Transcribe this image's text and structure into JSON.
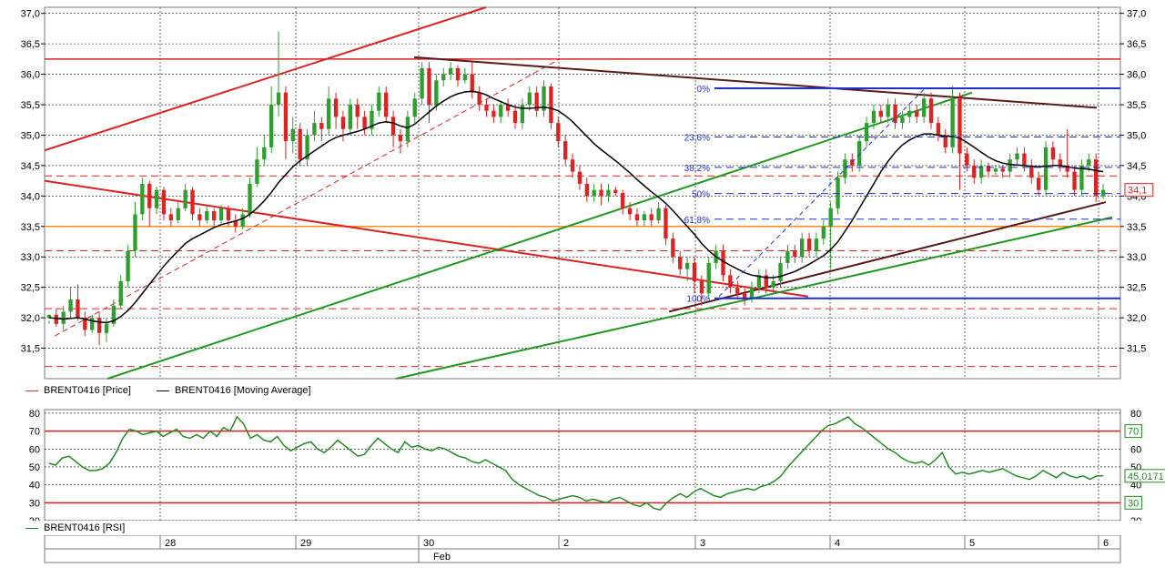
{
  "chart_data": [
    {
      "type": "candlestick",
      "name": "price-panel",
      "ylim": [
        31.0,
        37.1
      ],
      "yticks": [
        "31,5",
        "32,0",
        "32,5",
        "33,0",
        "33,5",
        "34,0",
        "34,5",
        "35,0",
        "35,5",
        "36,0",
        "36,5",
        "37,0"
      ],
      "ytick_values": [
        31.5,
        32.0,
        32.5,
        33.0,
        33.5,
        34.0,
        34.5,
        35.0,
        35.5,
        36.0,
        36.5,
        37.0
      ],
      "series": [
        {
          "name": "BRENT0416 [Price]",
          "color": "#e03030"
        },
        {
          "name": "BRENT0416 [Moving Average]",
          "color": "#000000"
        }
      ],
      "candles": [
        [
          32.0,
          32.05,
          31.95,
          31.9
        ],
        [
          32.05,
          31.9,
          32.15,
          31.85
        ],
        [
          31.9,
          32.1,
          32.2,
          31.8
        ],
        [
          32.1,
          32.3,
          32.5,
          32.0
        ],
        [
          32.3,
          32.0,
          32.55,
          31.95
        ],
        [
          32.0,
          31.8,
          32.1,
          31.7
        ],
        [
          31.8,
          32.0,
          32.05,
          31.75
        ],
        [
          32.0,
          31.75,
          32.1,
          31.55
        ],
        [
          31.75,
          31.9,
          32.0,
          31.6
        ],
        [
          31.9,
          32.2,
          32.3,
          31.85
        ],
        [
          32.2,
          32.6,
          32.7,
          32.15
        ],
        [
          32.6,
          33.1,
          33.2,
          32.5
        ],
        [
          33.1,
          33.7,
          33.9,
          33.0
        ],
        [
          33.7,
          34.2,
          34.3,
          33.6
        ],
        [
          34.2,
          33.8,
          34.25,
          33.5
        ],
        [
          33.8,
          34.1,
          34.15,
          33.7
        ],
        [
          34.1,
          33.7,
          34.15,
          33.6
        ],
        [
          33.7,
          33.6,
          33.8,
          33.5
        ],
        [
          33.6,
          33.8,
          33.9,
          33.55
        ],
        [
          33.8,
          34.1,
          34.2,
          33.75
        ],
        [
          34.1,
          33.7,
          34.15,
          33.6
        ],
        [
          33.7,
          33.6,
          33.8,
          33.5
        ],
        [
          33.6,
          33.75,
          33.85,
          33.55
        ],
        [
          33.75,
          33.6,
          33.8,
          33.5
        ],
        [
          33.6,
          33.8,
          33.85,
          33.55
        ],
        [
          33.8,
          33.6,
          33.85,
          33.5
        ],
        [
          33.6,
          33.5,
          33.7,
          33.4
        ],
        [
          33.5,
          33.7,
          33.8,
          33.45
        ],
        [
          33.7,
          34.2,
          34.3,
          33.65
        ],
        [
          34.2,
          34.6,
          34.8,
          34.15
        ],
        [
          34.6,
          34.8,
          35.0,
          34.5
        ],
        [
          34.8,
          35.5,
          35.8,
          34.7
        ],
        [
          35.5,
          35.7,
          36.7,
          35.3
        ],
        [
          35.7,
          34.9,
          35.8,
          34.6
        ],
        [
          34.9,
          35.1,
          35.3,
          34.7
        ],
        [
          35.1,
          34.6,
          35.2,
          34.5
        ],
        [
          34.6,
          35.0,
          35.1,
          34.5
        ],
        [
          35.0,
          35.2,
          35.4,
          34.9
        ],
        [
          35.2,
          35.1,
          35.3,
          34.9
        ],
        [
          35.1,
          35.6,
          35.8,
          35.0
        ],
        [
          35.6,
          35.3,
          35.7,
          35.1
        ],
        [
          35.3,
          35.1,
          35.4,
          34.9
        ],
        [
          35.1,
          35.5,
          35.6,
          35.0
        ],
        [
          35.5,
          35.3,
          35.6,
          35.1
        ],
        [
          35.3,
          35.1,
          35.4,
          35.0
        ],
        [
          35.1,
          35.4,
          35.5,
          35.0
        ],
        [
          35.4,
          35.7,
          35.8,
          35.3
        ],
        [
          35.7,
          35.3,
          35.8,
          35.2
        ],
        [
          35.3,
          35.0,
          35.4,
          34.8
        ],
        [
          35.0,
          34.9,
          35.1,
          34.7
        ],
        [
          34.9,
          35.3,
          35.4,
          34.8
        ],
        [
          35.3,
          35.6,
          35.7,
          35.2
        ],
        [
          35.6,
          36.1,
          36.2,
          35.5
        ],
        [
          36.1,
          35.5,
          36.2,
          35.2
        ],
        [
          35.5,
          35.9,
          36.0,
          35.4
        ],
        [
          35.9,
          36.0,
          36.1,
          35.8
        ],
        [
          36.0,
          36.1,
          36.2,
          35.9
        ],
        [
          36.1,
          35.9,
          36.15,
          35.8
        ],
        [
          35.9,
          36.0,
          36.1,
          35.85
        ],
        [
          36.0,
          35.7,
          36.2,
          35.6
        ],
        [
          35.7,
          35.5,
          35.8,
          35.4
        ],
        [
          35.5,
          35.4,
          35.6,
          35.3
        ],
        [
          35.4,
          35.3,
          35.5,
          35.2
        ],
        [
          35.3,
          35.5,
          35.55,
          35.2
        ],
        [
          35.5,
          35.4,
          35.6,
          35.3
        ],
        [
          35.4,
          35.2,
          35.5,
          35.1
        ],
        [
          35.2,
          35.5,
          35.6,
          35.1
        ],
        [
          35.5,
          35.7,
          35.8,
          35.4
        ],
        [
          35.7,
          35.4,
          35.8,
          35.3
        ],
        [
          35.4,
          35.8,
          35.9,
          35.3
        ],
        [
          35.8,
          35.2,
          35.85,
          35.1
        ],
        [
          35.2,
          34.9,
          35.3,
          34.8
        ],
        [
          34.9,
          34.6,
          35.0,
          34.5
        ],
        [
          34.6,
          34.4,
          34.7,
          34.3
        ],
        [
          34.4,
          34.2,
          34.5,
          34.1
        ],
        [
          34.2,
          34.0,
          34.3,
          33.9
        ],
        [
          34.0,
          34.1,
          34.2,
          33.9
        ],
        [
          34.1,
          34.0,
          34.2,
          33.85
        ],
        [
          34.0,
          34.1,
          34.2,
          33.9
        ],
        [
          34.1,
          34.05,
          34.15,
          34.0
        ],
        [
          34.05,
          33.8,
          34.1,
          33.7
        ],
        [
          33.8,
          33.7,
          33.9,
          33.6
        ],
        [
          33.7,
          33.6,
          33.8,
          33.5
        ],
        [
          33.6,
          33.7,
          33.75,
          33.5
        ],
        [
          33.7,
          33.6,
          33.8,
          33.5
        ],
        [
          33.6,
          33.8,
          33.9,
          33.55
        ],
        [
          33.8,
          33.3,
          33.85,
          33.2
        ],
        [
          33.3,
          33.0,
          33.4,
          32.9
        ],
        [
          33.0,
          32.8,
          33.1,
          32.7
        ],
        [
          32.8,
          32.9,
          33.0,
          32.6
        ],
        [
          32.9,
          32.6,
          33.0,
          32.4
        ],
        [
          32.6,
          32.4,
          32.7,
          32.2
        ],
        [
          32.4,
          32.9,
          33.0,
          32.3
        ],
        [
          32.9,
          33.1,
          33.2,
          32.8
        ],
        [
          33.1,
          32.7,
          33.2,
          32.6
        ],
        [
          32.7,
          32.5,
          32.8,
          32.4
        ],
        [
          32.5,
          32.4,
          32.6,
          32.3
        ],
        [
          32.4,
          32.3,
          32.5,
          32.2
        ],
        [
          32.3,
          32.5,
          32.6,
          32.25
        ],
        [
          32.5,
          32.7,
          32.8,
          32.4
        ],
        [
          32.7,
          32.5,
          32.8,
          32.4
        ],
        [
          32.5,
          32.6,
          32.7,
          32.4
        ],
        [
          32.6,
          32.9,
          33.0,
          32.5
        ],
        [
          32.9,
          33.1,
          33.2,
          32.8
        ],
        [
          33.1,
          33.0,
          33.2,
          32.9
        ],
        [
          33.0,
          33.3,
          33.4,
          32.9
        ],
        [
          33.3,
          33.1,
          33.4,
          33.0
        ],
        [
          33.1,
          33.3,
          33.4,
          33.0
        ],
        [
          33.3,
          33.5,
          33.6,
          33.2
        ],
        [
          33.5,
          33.8,
          33.9,
          32.8
        ],
        [
          33.8,
          34.3,
          34.4,
          33.7
        ],
        [
          34.3,
          34.6,
          34.7,
          34.2
        ],
        [
          34.6,
          34.5,
          34.7,
          34.4
        ],
        [
          34.5,
          34.9,
          35.0,
          34.4
        ],
        [
          34.9,
          35.2,
          35.3,
          34.8
        ],
        [
          35.2,
          35.4,
          35.5,
          35.1
        ],
        [
          35.4,
          35.3,
          35.5,
          35.2
        ],
        [
          35.3,
          35.5,
          35.6,
          35.2
        ],
        [
          35.5,
          35.2,
          35.6,
          35.1
        ],
        [
          35.2,
          35.3,
          35.4,
          35.1
        ],
        [
          35.3,
          35.4,
          35.5,
          35.2
        ],
        [
          35.4,
          35.3,
          35.5,
          35.2
        ],
        [
          35.3,
          35.6,
          35.7,
          35.2
        ],
        [
          35.6,
          35.2,
          35.7,
          35.1
        ],
        [
          35.2,
          35.0,
          35.3,
          34.9
        ],
        [
          35.0,
          34.8,
          35.1,
          34.7
        ],
        [
          34.8,
          35.6,
          35.8,
          34.7
        ],
        [
          35.6,
          34.7,
          35.7,
          34.1
        ],
        [
          34.7,
          34.5,
          34.8,
          34.4
        ],
        [
          34.5,
          34.3,
          34.6,
          34.2
        ],
        [
          34.3,
          34.5,
          34.6,
          34.2
        ],
        [
          34.5,
          34.4,
          34.55,
          34.3
        ],
        [
          34.4,
          34.45,
          34.5,
          34.35
        ],
        [
          34.45,
          34.4,
          34.5,
          34.3
        ],
        [
          34.4,
          34.6,
          34.7,
          34.3
        ],
        [
          34.6,
          34.7,
          34.8,
          34.5
        ],
        [
          34.7,
          34.5,
          34.8,
          34.4
        ],
        [
          34.5,
          34.3,
          34.6,
          34.2
        ],
        [
          34.3,
          34.1,
          34.4,
          34.0
        ],
        [
          34.1,
          34.8,
          34.9,
          34.0
        ],
        [
          34.8,
          34.6,
          34.9,
          34.5
        ],
        [
          34.6,
          34.5,
          34.7,
          34.4
        ],
        [
          34.5,
          34.4,
          35.1,
          34.3
        ],
        [
          34.4,
          34.1,
          34.5,
          34.0
        ],
        [
          34.1,
          34.5,
          34.6,
          34.0
        ],
        [
          34.5,
          34.6,
          34.7,
          34.4
        ],
        [
          34.6,
          34.0,
          34.7,
          33.9
        ],
        [
          34.0,
          34.1,
          34.2,
          33.95
        ]
      ],
      "moving_average": [
        32.0,
        31.99,
        31.98,
        31.99,
        32.0,
        31.98,
        31.95,
        31.93,
        31.92,
        31.95,
        32.02,
        32.12,
        32.25,
        32.4,
        32.55,
        32.7,
        32.85,
        32.98,
        33.1,
        33.22,
        33.3,
        33.36,
        33.42,
        33.48,
        33.53,
        33.56,
        33.59,
        33.63,
        33.7,
        33.8,
        33.92,
        34.06,
        34.22,
        34.35,
        34.48,
        34.58,
        34.66,
        34.74,
        34.82,
        34.9,
        34.96,
        35.0,
        35.03,
        35.06,
        35.1,
        35.15,
        35.2,
        35.22,
        35.2,
        35.15,
        35.12,
        35.18,
        35.28,
        35.38,
        35.48,
        35.56,
        35.63,
        35.68,
        35.71,
        35.72,
        35.7,
        35.66,
        35.6,
        35.55,
        35.5,
        35.46,
        35.44,
        35.44,
        35.45,
        35.46,
        35.44,
        35.4,
        35.32,
        35.22,
        35.1,
        34.98,
        34.86,
        34.76,
        34.67,
        34.58,
        34.48,
        34.38,
        34.27,
        34.17,
        34.07,
        33.98,
        33.88,
        33.76,
        33.63,
        33.5,
        33.37,
        33.22,
        33.1,
        33.0,
        32.93,
        32.86,
        32.8,
        32.74,
        32.7,
        32.68,
        32.66,
        32.66,
        32.68,
        32.72,
        32.76,
        32.82,
        32.88,
        32.95,
        33.02,
        33.12,
        33.25,
        33.42,
        33.6,
        33.8,
        34.0,
        34.2,
        34.4,
        34.57,
        34.72,
        34.84,
        34.92,
        34.98,
        35.02,
        35.02,
        35.0,
        34.98,
        34.98,
        34.95,
        34.88,
        34.8,
        34.72,
        34.64,
        34.58,
        34.54,
        34.52,
        34.51,
        34.5,
        34.49,
        34.48,
        34.49,
        34.5,
        34.5,
        34.48,
        34.46,
        34.45,
        34.44,
        34.42,
        34.4
      ],
      "last_price_label": "34,1",
      "fib_labels": [
        "0%",
        "23,6%",
        "38,2%",
        "50%",
        "61,8%",
        "100%"
      ]
    },
    {
      "type": "line",
      "name": "rsi-panel",
      "ylim": [
        20,
        82
      ],
      "yticks": [
        "20",
        "30",
        "40",
        "50",
        "60",
        "70",
        "80"
      ],
      "ytick_values": [
        20,
        30,
        40,
        50,
        60,
        70,
        80
      ],
      "series": [
        {
          "name": "BRENT0416 [RSI]",
          "color": "#228b22"
        }
      ],
      "levels": [
        70,
        30
      ],
      "level_tags": [
        "70",
        "30"
      ],
      "last_value_label": "45,0171",
      "values": [
        52,
        51,
        55,
        56,
        53,
        50,
        48,
        48,
        49,
        52,
        58,
        66,
        71,
        70,
        68,
        69,
        70,
        67,
        69,
        71,
        67,
        66,
        68,
        66,
        70,
        67,
        72,
        70,
        78,
        74,
        66,
        68,
        65,
        64,
        67,
        62,
        59,
        61,
        63,
        64,
        60,
        58,
        61,
        65,
        62,
        59,
        56,
        57,
        62,
        66,
        63,
        60,
        58,
        64,
        61,
        62,
        60,
        59,
        61,
        60,
        58,
        56,
        55,
        53,
        52,
        54,
        52,
        50,
        48,
        43,
        40,
        38,
        36,
        34,
        33,
        31,
        32,
        33,
        34,
        33,
        31,
        32,
        31,
        30,
        32,
        33,
        31,
        29,
        28,
        30,
        27,
        26,
        30,
        33,
        35,
        33,
        36,
        38,
        36,
        34,
        33,
        35,
        36,
        37,
        38,
        37,
        39,
        40,
        42,
        45,
        50,
        54,
        58,
        62,
        66,
        70,
        73,
        74,
        76,
        78,
        74,
        72,
        69,
        66,
        63,
        60,
        58,
        55,
        53,
        52,
        53,
        51,
        54,
        58,
        50,
        46,
        47,
        46,
        47,
        48,
        47,
        48,
        49,
        47,
        45,
        44,
        43,
        45,
        48,
        46,
        44,
        47,
        45,
        44,
        45,
        43,
        45,
        45
      ]
    }
  ],
  "legend_top": {
    "price": "BRENT0416 [Price]",
    "ma": "BRENT0416 [Moving Average]"
  },
  "legend_bottom": {
    "rsi": "BRENT0416 [RSI]"
  },
  "xaxis": {
    "day_labels": [
      "28",
      "29",
      "30",
      "2",
      "3",
      "4",
      "5",
      "6"
    ],
    "month_label": "Feb"
  },
  "colors": {
    "bull": "#2e9e2e",
    "bear": "#dd2222",
    "ma": "#000000",
    "rsi": "#228b22",
    "fib": "#1e2fd0",
    "orange": "#ff8c1a",
    "trend_red": "#e02020",
    "trend_green": "#1f9a1f",
    "trend_dark": "#5a1a1a"
  }
}
